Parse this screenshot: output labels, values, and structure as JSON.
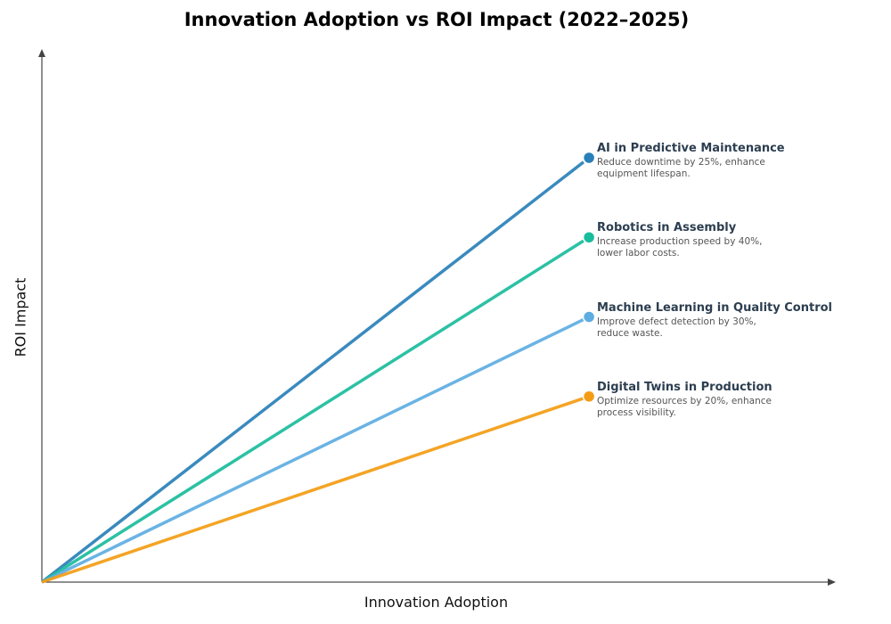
{
  "chart_data": {
    "type": "line",
    "title": "Innovation Adoption vs ROI Impact (2022–2025)",
    "xlabel": "Innovation Adoption",
    "ylabel": "ROI Impact",
    "xlim": [
      0,
      1
    ],
    "ylim": [
      0,
      1
    ],
    "grid": false,
    "series": [
      {
        "name": "AI in Predictive Maintenance",
        "description": "Reduce downtime by 25%, enhance equipment lifespan.",
        "color": "#2980b9",
        "x": [
          0,
          0.69
        ],
        "y": [
          0,
          0.8
        ]
      },
      {
        "name": "Robotics in Assembly",
        "description": "Increase production speed by 40%, lower labor costs.",
        "color": "#1abc9c",
        "x": [
          0,
          0.69
        ],
        "y": [
          0,
          0.65
        ]
      },
      {
        "name": "Machine Learning in Quality Control",
        "description": "Improve defect detection by 30%, reduce waste.",
        "color": "#5dade2",
        "x": [
          0,
          0.69
        ],
        "y": [
          0,
          0.5
        ]
      },
      {
        "name": "Digital Twins in Production",
        "description": "Optimize resources by 20%, enhance process visibility.",
        "color": "#f39c12",
        "x": [
          0,
          0.69
        ],
        "y": [
          0,
          0.35
        ]
      }
    ]
  }
}
